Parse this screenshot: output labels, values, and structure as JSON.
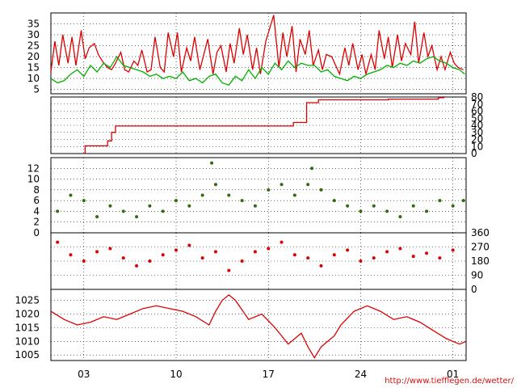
{
  "source_credit": "http://www.tiefflegen.de/wetter/",
  "colors": {
    "red": "#dd0000",
    "green": "#00b000",
    "dark_green": "#2f6b12",
    "grid": "#000000"
  },
  "x_axis": {
    "unit": "day_of_period",
    "range": [
      0,
      31.5
    ],
    "ticks": [
      {
        "day": 2.5,
        "label": "03"
      },
      {
        "day": 9.5,
        "label": "10"
      },
      {
        "day": 16.5,
        "label": "17"
      },
      {
        "day": 23.5,
        "label": "24"
      },
      {
        "day": 30.5,
        "label": "01"
      }
    ]
  },
  "chart_data": [
    {
      "type": "line",
      "ylim": [
        3,
        40
      ],
      "yticks": [
        {
          "v": 5,
          "label": "5"
        },
        {
          "v": 10,
          "label": "10"
        },
        {
          "v": 15,
          "label": "15"
        },
        {
          "v": 20,
          "label": "20"
        },
        {
          "v": 25,
          "label": "25"
        },
        {
          "v": 30,
          "label": "30"
        },
        {
          "v": 35,
          "label": "35"
        }
      ],
      "series": [
        {
          "color": "red",
          "x": [
            0,
            0.3,
            0.6,
            0.9,
            1.3,
            1.6,
            1.9,
            2.3,
            2.6,
            2.9,
            3.3,
            3.6,
            3.9,
            4.3,
            4.6,
            4.9,
            5.3,
            5.6,
            5.9,
            6.3,
            6.6,
            6.9,
            7.3,
            7.6,
            7.9,
            8.3,
            8.6,
            8.9,
            9.3,
            9.6,
            9.9,
            10.3,
            10.6,
            10.9,
            11.3,
            11.6,
            11.9,
            12.3,
            12.6,
            12.9,
            13.3,
            13.6,
            13.9,
            14.3,
            14.6,
            14.9,
            15.3,
            15.6,
            15.9,
            16.3,
            16.6,
            16.9,
            17.3,
            17.6,
            17.9,
            18.3,
            18.6,
            18.9,
            19.3,
            19.6,
            19.9,
            20.3,
            20.6,
            20.9,
            21.3,
            21.6,
            21.9,
            22.3,
            22.6,
            22.9,
            23.3,
            23.6,
            23.9,
            24.3,
            24.6,
            24.9,
            25.3,
            25.6,
            25.9,
            26.3,
            26.6,
            26.9,
            27.3,
            27.6,
            27.9,
            28.3,
            28.6,
            28.9,
            29.3,
            29.6,
            29.9,
            30.3,
            30.6,
            30.9,
            31.3
          ],
          "y": [
            13,
            27,
            16,
            30,
            17,
            29,
            16,
            32,
            19,
            24,
            26,
            21,
            18,
            15,
            14,
            17,
            22,
            14,
            13,
            18,
            16,
            23,
            13,
            14,
            29,
            15,
            13,
            31,
            20,
            31,
            13,
            24,
            18,
            29,
            14,
            21,
            28,
            12,
            22,
            25,
            13,
            26,
            17,
            33,
            21,
            30,
            14,
            24,
            12,
            27,
            33,
            39,
            15,
            31,
            20,
            34,
            13,
            28,
            21,
            32,
            16,
            23,
            14,
            21,
            20,
            16,
            12,
            24,
            16,
            26,
            14,
            21,
            12,
            21,
            14,
            32,
            19,
            29,
            15,
            30,
            18,
            26,
            21,
            36,
            17,
            31,
            20,
            25,
            14,
            20,
            14,
            22,
            17,
            15,
            14
          ]
        },
        {
          "color": "green",
          "x": [
            0,
            0.5,
            1,
            1.5,
            2,
            2.5,
            3,
            3.5,
            4,
            4.5,
            5,
            5.5,
            6,
            6.5,
            7,
            7.5,
            8,
            8.5,
            9,
            9.5,
            10,
            10.5,
            11,
            11.5,
            12,
            12.5,
            13,
            13.5,
            14,
            14.5,
            15,
            15.5,
            16,
            16.5,
            17,
            17.5,
            18,
            18.5,
            19,
            19.5,
            20,
            20.5,
            21,
            21.5,
            22,
            22.5,
            23,
            23.5,
            24,
            24.5,
            25,
            25.5,
            26,
            26.5,
            27,
            27.5,
            28,
            28.5,
            29,
            29.5,
            30,
            30.5,
            31,
            31.4
          ],
          "y": [
            10,
            8,
            9,
            12,
            14,
            11,
            16,
            13,
            17,
            15,
            20,
            16,
            15,
            14,
            13,
            11,
            12,
            10,
            11,
            10,
            13,
            9,
            10,
            8,
            11,
            12,
            8,
            7,
            11,
            9,
            14,
            10,
            15,
            12,
            17,
            14,
            18,
            15,
            17,
            16,
            16,
            13,
            14,
            11,
            10,
            9,
            11,
            10,
            12,
            13,
            14,
            16,
            15,
            17,
            16,
            18,
            17,
            19,
            20,
            18,
            17,
            15,
            14,
            12
          ]
        }
      ]
    },
    {
      "type": "line",
      "ylim": [
        0,
        80
      ],
      "yticks": [
        {
          "v": 0,
          "label": "0"
        },
        {
          "v": 10,
          "label": "10"
        },
        {
          "v": 20,
          "label": "20"
        },
        {
          "v": 30,
          "label": "30"
        },
        {
          "v": 40,
          "label": "40"
        },
        {
          "v": 50,
          "label": "50"
        },
        {
          "v": 60,
          "label": "60"
        },
        {
          "v": 70,
          "label": "70"
        },
        {
          "v": 80,
          "label": "80"
        }
      ],
      "series": [
        {
          "color": "red",
          "x": [
            2.6,
            2.6,
            4.3,
            4.3,
            4.6,
            4.6,
            4.9,
            4.9,
            18.4,
            18.4,
            19.4,
            19.4,
            20.3,
            20.3,
            25.6,
            25.6,
            29.4,
            29.4,
            29.8,
            29.8
          ],
          "y": [
            0,
            11,
            11,
            18,
            18,
            30,
            30,
            39,
            39,
            44,
            44,
            72,
            72,
            76,
            76,
            77,
            77,
            79,
            79,
            81
          ]
        }
      ]
    },
    {
      "type": "scatter",
      "ylim": [
        0,
        14
      ],
      "yticks": [
        {
          "v": 0,
          "label": "0"
        },
        {
          "v": 2,
          "label": "2"
        },
        {
          "v": 4,
          "label": "4"
        },
        {
          "v": 6,
          "label": "6"
        },
        {
          "v": 8,
          "label": "8"
        },
        {
          "v": 10,
          "label": "10"
        },
        {
          "v": 12,
          "label": "12"
        }
      ],
      "series": [
        {
          "color": "dark_green",
          "x": [
            0.5,
            1.5,
            2.5,
            3.5,
            4.5,
            5.5,
            6.5,
            7.5,
            8.5,
            9.5,
            10.5,
            11.5,
            12.2,
            12.5,
            13.5,
            14.5,
            15.5,
            16.5,
            17.5,
            18.5,
            19.5,
            19.8,
            20.5,
            21.5,
            22.5,
            23.5,
            24.5,
            25.5,
            26.5,
            27.5,
            28.5,
            29.5,
            30.5,
            31.3
          ],
          "y": [
            4,
            7,
            6,
            3,
            5,
            4,
            3,
            5,
            4,
            6,
            5,
            7,
            13,
            9,
            7,
            6,
            5,
            8,
            9,
            7,
            9,
            12,
            8,
            6,
            5,
            4,
            5,
            4,
            3,
            5,
            4,
            6,
            5,
            6
          ]
        }
      ]
    },
    {
      "type": "scatter",
      "ylim": [
        0,
        360
      ],
      "yticks": [
        {
          "v": 0,
          "label": "0"
        },
        {
          "v": 90,
          "label": "90"
        },
        {
          "v": 180,
          "label": "180"
        },
        {
          "v": 270,
          "label": "270"
        },
        {
          "v": 360,
          "label": "360"
        }
      ],
      "series": [
        {
          "color": "red",
          "x": [
            0.5,
            1.5,
            2.5,
            3.5,
            4.5,
            5.5,
            6.5,
            7.5,
            8.5,
            9.5,
            10.5,
            11.5,
            12.5,
            13.5,
            14.5,
            15.5,
            16.5,
            17.5,
            18.5,
            19.5,
            20.5,
            21.5,
            22.5,
            23.5,
            24.5,
            25.5,
            26.5,
            27.5,
            28.5,
            29.5,
            30.5
          ],
          "y": [
            300,
            220,
            180,
            240,
            260,
            200,
            150,
            180,
            220,
            250,
            280,
            200,
            240,
            120,
            180,
            240,
            260,
            300,
            220,
            200,
            150,
            220,
            250,
            180,
            200,
            240,
            260,
            210,
            230,
            200,
            250
          ]
        }
      ]
    },
    {
      "type": "line",
      "ylim": [
        1003,
        1029
      ],
      "yticks": [
        {
          "v": 1005,
          "label": "1005"
        },
        {
          "v": 1010,
          "label": "1010"
        },
        {
          "v": 1015,
          "label": "1015"
        },
        {
          "v": 1020,
          "label": "1020"
        },
        {
          "v": 1025,
          "label": "1025"
        }
      ],
      "series": [
        {
          "color": "red",
          "x": [
            0,
            1,
            2,
            3,
            4,
            5,
            6,
            7,
            8,
            9,
            10,
            11,
            12,
            12.5,
            13,
            13.5,
            14,
            15,
            16,
            17,
            17.5,
            18,
            18.5,
            19,
            19.5,
            20,
            20.5,
            21,
            21.5,
            22,
            23,
            24,
            25,
            26,
            27,
            28,
            29,
            30,
            31,
            31.5
          ],
          "y": [
            1021,
            1018,
            1016,
            1017,
            1019,
            1018,
            1020,
            1022,
            1023,
            1022,
            1021,
            1019,
            1016,
            1021,
            1025,
            1027,
            1025,
            1018,
            1020,
            1015,
            1012,
            1009,
            1011,
            1013,
            1008,
            1004,
            1008,
            1010,
            1012,
            1016,
            1021,
            1023,
            1021,
            1018,
            1019,
            1017,
            1014,
            1011,
            1009,
            1010
          ]
        }
      ]
    }
  ]
}
